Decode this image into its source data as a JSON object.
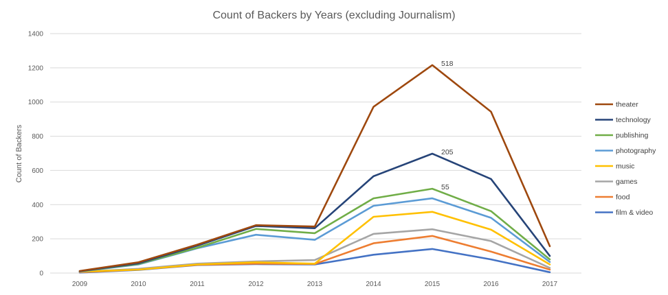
{
  "chart_data": {
    "type": "line",
    "title": "Count of Backers by Years (excluding Journalism)",
    "ylabel": "Count of Backers",
    "xlabel": "",
    "ylim": [
      0,
      1400
    ],
    "yticks": [
      0,
      200,
      400,
      600,
      800,
      1000,
      1200,
      1400
    ],
    "grid": true,
    "legend_position": "right",
    "categories": [
      "2009",
      "2010",
      "2011",
      "2012",
      "2013",
      "2014",
      "2015",
      "2016",
      "2017"
    ],
    "series": [
      {
        "name": "theater",
        "color": "#9e480e",
        "values": [
          12,
          63,
          166,
          280,
          272,
          972,
          1216,
          943,
          157
        ],
        "label": {
          "index": 6,
          "text": "518"
        }
      },
      {
        "name": "technology",
        "color": "#264478",
        "values": [
          11,
          57,
          160,
          275,
          262,
          566,
          698,
          550,
          100
        ],
        "label": {
          "index": 6,
          "text": "205"
        }
      },
      {
        "name": "publishing",
        "color": "#70ad47",
        "values": [
          10,
          53,
          148,
          258,
          233,
          437,
          493,
          362,
          80
        ],
        "label": {
          "index": 6,
          "text": "55"
        }
      },
      {
        "name": "photography",
        "color": "#5b9bd5",
        "values": [
          9,
          50,
          145,
          224,
          194,
          393,
          437,
          323,
          65
        ]
      },
      {
        "name": "music",
        "color": "#ffc000",
        "values": [
          8,
          20,
          50,
          63,
          55,
          329,
          358,
          254,
          50
        ]
      },
      {
        "name": "games",
        "color": "#a5a5a5",
        "values": [
          7,
          25,
          55,
          68,
          76,
          229,
          256,
          187,
          30
        ]
      },
      {
        "name": "food",
        "color": "#ed7d31",
        "values": [
          5,
          20,
          48,
          55,
          53,
          174,
          217,
          125,
          20
        ]
      },
      {
        "name": "film & video",
        "color": "#4472c4",
        "values": [
          3,
          18,
          47,
          52,
          50,
          107,
          141,
          80,
          5
        ]
      }
    ]
  }
}
